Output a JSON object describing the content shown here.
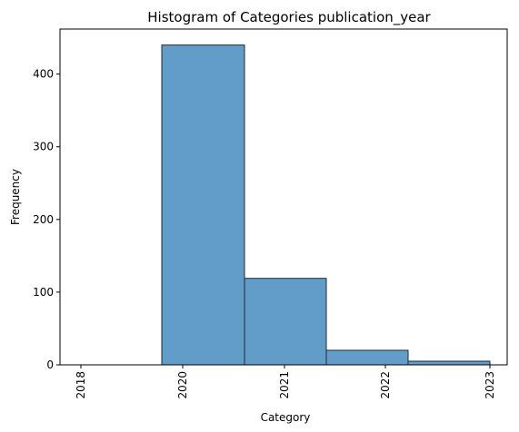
{
  "chart_data": {
    "type": "bar",
    "title": "Histogram of Categories publication_year",
    "xlabel": "Category",
    "ylabel": "Frequency",
    "bins": [
      {
        "from": 2018,
        "to": 2020,
        "count": 0
      },
      {
        "from": 2020,
        "to": 2021,
        "count": 440
      },
      {
        "from": 2021,
        "to": 2022,
        "count": 119
      },
      {
        "from": 2022,
        "to": 2023,
        "count": 20
      },
      {
        "from": 2023,
        "to": 2023,
        "count": 5
      }
    ],
    "x_ticks": [
      "2018",
      "2020",
      "2021",
      "2022",
      "2023"
    ],
    "y_ticks": [
      0,
      100,
      200,
      300,
      400
    ],
    "ylim": [
      0,
      462
    ],
    "bar_color": "#4c8fc3",
    "edge_color": "#1f2a36",
    "grid": false,
    "legend": false
  }
}
